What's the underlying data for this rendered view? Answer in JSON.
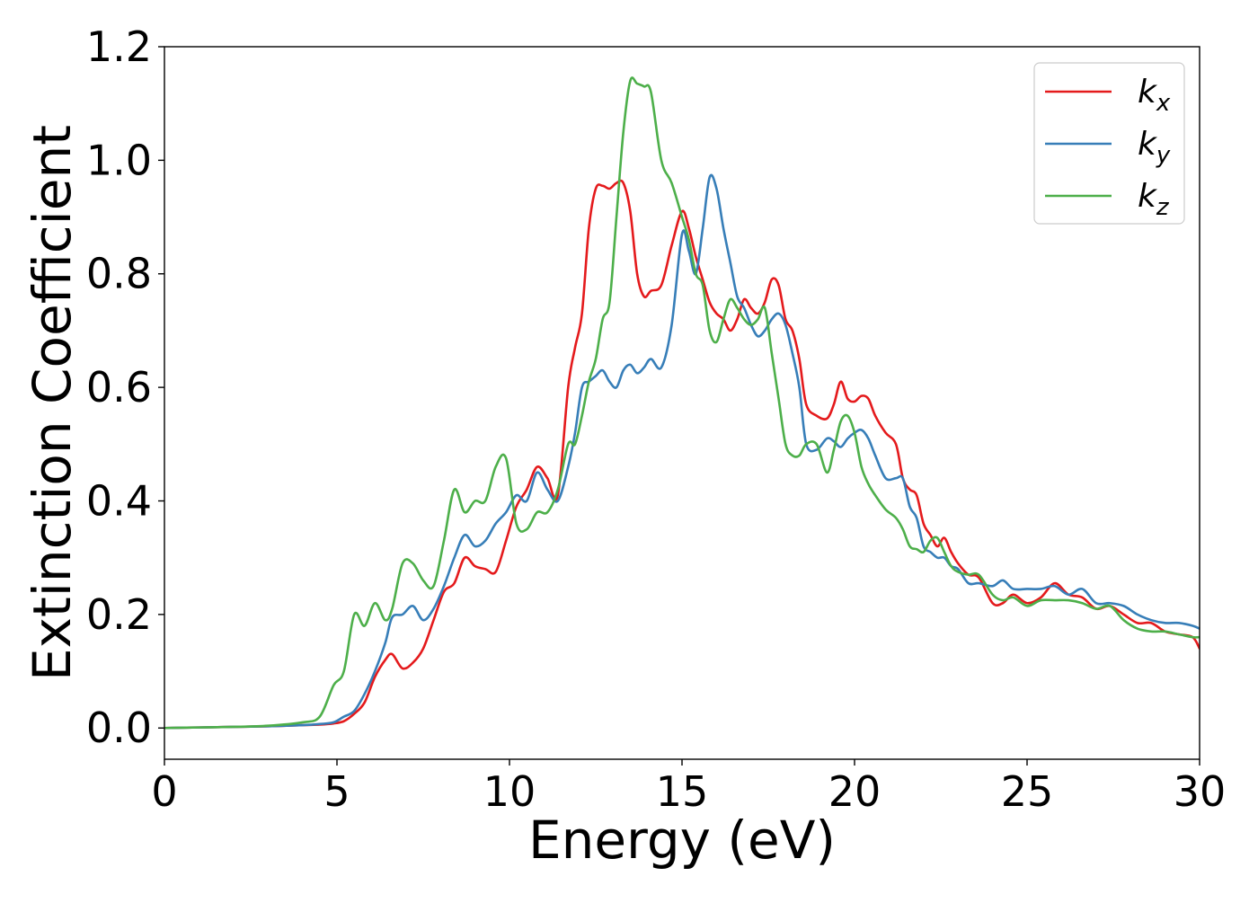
{
  "chart_data": {
    "type": "line",
    "title": "",
    "xlabel": "Energy (eV)",
    "ylabel": "Extinction Coefficient",
    "xlim": [
      0,
      30
    ],
    "ylim": [
      -0.055,
      1.2
    ],
    "xticks": [
      0,
      5,
      10,
      15,
      20,
      25,
      30
    ],
    "yticks": [
      0.0,
      0.2,
      0.4,
      0.6,
      0.8,
      1.0,
      1.2
    ],
    "xtick_labels": [
      "0",
      "5",
      "10",
      "15",
      "20",
      "25",
      "30"
    ],
    "ytick_labels": [
      "0.0",
      "0.2",
      "0.4",
      "0.6",
      "0.8",
      "1.0",
      "1.2"
    ],
    "grid": false,
    "legend": {
      "placement": "top-right"
    },
    "series": [
      {
        "name": "k_x",
        "legend_main": "k",
        "legend_sub": "x",
        "color": "#e41a1c",
        "x": [
          0,
          1,
          2,
          3,
          4,
          4.5,
          4.9,
          5.2,
          5.5,
          5.8,
          6.1,
          6.4,
          6.6,
          6.9,
          7.2,
          7.5,
          7.8,
          8.1,
          8.4,
          8.7,
          9.0,
          9.3,
          9.6,
          9.9,
          10.2,
          10.5,
          10.8,
          11.1,
          11.4,
          11.7,
          11.9,
          12.1,
          12.3,
          12.5,
          12.7,
          12.9,
          13.1,
          13.3,
          13.5,
          13.7,
          13.9,
          14.1,
          14.4,
          14.7,
          15.0,
          15.2,
          15.4,
          15.6,
          15.8,
          16.0,
          16.2,
          16.4,
          16.6,
          16.8,
          17.0,
          17.2,
          17.4,
          17.6,
          17.8,
          18.0,
          18.2,
          18.4,
          18.6,
          18.9,
          19.2,
          19.4,
          19.6,
          19.8,
          20.0,
          20.2,
          20.4,
          20.6,
          20.9,
          21.2,
          21.4,
          21.6,
          21.8,
          22.0,
          22.2,
          22.4,
          22.6,
          22.8,
          23.0,
          23.3,
          23.6,
          24.0,
          24.3,
          24.6,
          25.0,
          25.4,
          25.8,
          26.2,
          26.6,
          27.0,
          27.4,
          27.8,
          28.2,
          28.6,
          29.0,
          29.4,
          29.8,
          30.0
        ],
        "values": [
          0,
          0.001,
          0.002,
          0.003,
          0.005,
          0.006,
          0.008,
          0.012,
          0.025,
          0.045,
          0.09,
          0.12,
          0.13,
          0.105,
          0.115,
          0.14,
          0.19,
          0.24,
          0.255,
          0.3,
          0.285,
          0.28,
          0.275,
          0.33,
          0.39,
          0.42,
          0.46,
          0.44,
          0.41,
          0.6,
          0.67,
          0.73,
          0.88,
          0.95,
          0.955,
          0.95,
          0.96,
          0.96,
          0.91,
          0.8,
          0.76,
          0.77,
          0.78,
          0.85,
          0.91,
          0.88,
          0.83,
          0.79,
          0.75,
          0.73,
          0.72,
          0.7,
          0.72,
          0.755,
          0.74,
          0.73,
          0.75,
          0.79,
          0.78,
          0.72,
          0.7,
          0.65,
          0.57,
          0.55,
          0.545,
          0.57,
          0.61,
          0.58,
          0.575,
          0.585,
          0.58,
          0.55,
          0.52,
          0.5,
          0.44,
          0.42,
          0.41,
          0.36,
          0.34,
          0.32,
          0.335,
          0.31,
          0.29,
          0.27,
          0.265,
          0.22,
          0.22,
          0.235,
          0.22,
          0.23,
          0.255,
          0.235,
          0.23,
          0.21,
          0.215,
          0.2,
          0.185,
          0.185,
          0.17,
          0.165,
          0.16,
          0.14
        ]
      },
      {
        "name": "k_y",
        "legend_main": "k",
        "legend_sub": "y",
        "color": "#377eb8",
        "x": [
          0,
          1,
          2,
          3,
          4,
          4.5,
          4.9,
          5.2,
          5.5,
          5.8,
          6.1,
          6.4,
          6.6,
          6.9,
          7.2,
          7.5,
          7.8,
          8.1,
          8.4,
          8.7,
          9.0,
          9.3,
          9.6,
          9.9,
          10.2,
          10.5,
          10.8,
          11.1,
          11.4,
          11.7,
          11.9,
          12.1,
          12.3,
          12.5,
          12.7,
          12.9,
          13.1,
          13.3,
          13.5,
          13.7,
          13.9,
          14.1,
          14.4,
          14.7,
          15.0,
          15.2,
          15.4,
          15.6,
          15.8,
          16.0,
          16.2,
          16.4,
          16.6,
          16.8,
          17.0,
          17.2,
          17.4,
          17.6,
          17.8,
          18.0,
          18.2,
          18.4,
          18.6,
          18.9,
          19.2,
          19.4,
          19.6,
          19.8,
          20.0,
          20.2,
          20.4,
          20.6,
          20.9,
          21.2,
          21.4,
          21.6,
          21.8,
          22.0,
          22.2,
          22.4,
          22.6,
          22.8,
          23.0,
          23.3,
          23.6,
          24.0,
          24.3,
          24.6,
          25.0,
          25.4,
          25.8,
          26.2,
          26.6,
          27.0,
          27.4,
          27.8,
          28.2,
          28.6,
          29.0,
          29.4,
          29.8,
          30.0
        ],
        "values": [
          0,
          0.001,
          0.002,
          0.003,
          0.005,
          0.007,
          0.01,
          0.02,
          0.03,
          0.06,
          0.1,
          0.15,
          0.195,
          0.2,
          0.215,
          0.19,
          0.21,
          0.25,
          0.3,
          0.34,
          0.32,
          0.33,
          0.36,
          0.38,
          0.41,
          0.4,
          0.45,
          0.42,
          0.4,
          0.46,
          0.52,
          0.6,
          0.61,
          0.62,
          0.63,
          0.61,
          0.6,
          0.63,
          0.64,
          0.625,
          0.635,
          0.65,
          0.635,
          0.71,
          0.87,
          0.84,
          0.8,
          0.88,
          0.97,
          0.95,
          0.88,
          0.82,
          0.76,
          0.74,
          0.71,
          0.69,
          0.7,
          0.72,
          0.73,
          0.71,
          0.66,
          0.6,
          0.5,
          0.49,
          0.51,
          0.505,
          0.495,
          0.51,
          0.52,
          0.525,
          0.51,
          0.48,
          0.44,
          0.44,
          0.44,
          0.39,
          0.37,
          0.32,
          0.31,
          0.3,
          0.3,
          0.285,
          0.28,
          0.255,
          0.255,
          0.25,
          0.26,
          0.245,
          0.245,
          0.245,
          0.25,
          0.235,
          0.245,
          0.22,
          0.22,
          0.215,
          0.2,
          0.19,
          0.185,
          0.185,
          0.18,
          0.175
        ]
      },
      {
        "name": "k_z",
        "legend_main": "k",
        "legend_sub": "z",
        "color": "#4daf4a",
        "x": [
          0,
          1,
          2,
          3,
          4,
          4.5,
          4.9,
          5.2,
          5.5,
          5.8,
          6.1,
          6.4,
          6.6,
          6.9,
          7.2,
          7.5,
          7.8,
          8.1,
          8.4,
          8.7,
          9.0,
          9.3,
          9.6,
          9.9,
          10.2,
          10.5,
          10.8,
          11.1,
          11.4,
          11.7,
          11.9,
          12.1,
          12.3,
          12.5,
          12.7,
          12.9,
          13.1,
          13.3,
          13.5,
          13.7,
          13.9,
          14.1,
          14.4,
          14.7,
          15.0,
          15.2,
          15.4,
          15.6,
          15.8,
          16.0,
          16.2,
          16.4,
          16.6,
          16.8,
          17.0,
          17.2,
          17.4,
          17.6,
          17.8,
          18.0,
          18.2,
          18.4,
          18.6,
          18.9,
          19.2,
          19.4,
          19.6,
          19.8,
          20.0,
          20.2,
          20.4,
          20.6,
          20.9,
          21.2,
          21.4,
          21.6,
          21.8,
          22.0,
          22.2,
          22.4,
          22.6,
          22.8,
          23.0,
          23.3,
          23.6,
          24.0,
          24.3,
          24.6,
          25.0,
          25.4,
          25.8,
          26.2,
          26.6,
          27.0,
          27.4,
          27.8,
          28.2,
          28.6,
          29.0,
          29.4,
          29.8,
          30.0
        ],
        "values": [
          0,
          0.001,
          0.002,
          0.004,
          0.01,
          0.02,
          0.075,
          0.1,
          0.2,
          0.18,
          0.22,
          0.19,
          0.21,
          0.29,
          0.29,
          0.26,
          0.25,
          0.33,
          0.42,
          0.38,
          0.4,
          0.4,
          0.46,
          0.475,
          0.36,
          0.35,
          0.38,
          0.38,
          0.42,
          0.5,
          0.5,
          0.55,
          0.61,
          0.65,
          0.72,
          0.75,
          0.9,
          1.05,
          1.14,
          1.135,
          1.13,
          1.12,
          1.0,
          0.96,
          0.9,
          0.86,
          0.8,
          0.78,
          0.7,
          0.68,
          0.72,
          0.755,
          0.74,
          0.72,
          0.71,
          0.72,
          0.74,
          0.66,
          0.58,
          0.5,
          0.48,
          0.48,
          0.5,
          0.5,
          0.45,
          0.49,
          0.54,
          0.55,
          0.52,
          0.46,
          0.43,
          0.41,
          0.385,
          0.37,
          0.35,
          0.32,
          0.315,
          0.31,
          0.33,
          0.335,
          0.31,
          0.285,
          0.275,
          0.27,
          0.27,
          0.235,
          0.225,
          0.23,
          0.215,
          0.225,
          0.225,
          0.225,
          0.22,
          0.21,
          0.215,
          0.19,
          0.175,
          0.17,
          0.17,
          0.165,
          0.16,
          0.16
        ]
      }
    ]
  }
}
